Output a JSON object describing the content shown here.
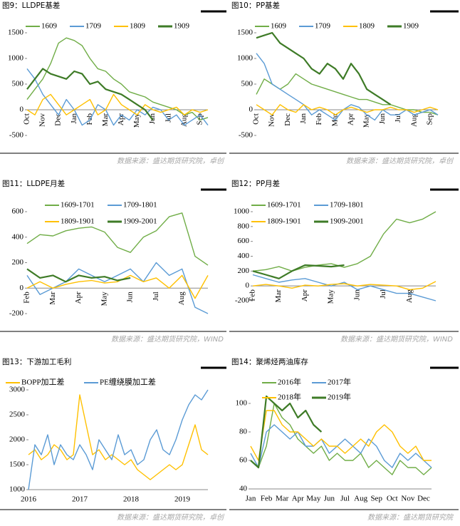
{
  "chart_data": [
    {
      "type": "line",
      "title": "图9：LLDPE基差",
      "source": "数据来源：盛达期货研究院，卓创",
      "categories": [
        "Oct",
        null,
        "Nov",
        null,
        "Dec",
        null,
        "Jan",
        null,
        "Feb",
        null,
        "Mar",
        null,
        "Apr",
        null,
        "May",
        null,
        "Jun",
        null,
        "Jul",
        null,
        "Aug",
        null,
        "Sep",
        null
      ],
      "ylim": [
        -500,
        1500
      ],
      "yticks": [
        -500,
        0,
        500,
        1000,
        1500
      ],
      "legend": "top",
      "series": [
        {
          "name": "1609",
          "color": "#70ad47",
          "values": [
            200,
            400,
            600,
            900,
            1300,
            1400,
            1350,
            1250,
            1000,
            800,
            750,
            600,
            500,
            350,
            300,
            250,
            150,
            100,
            50,
            0,
            -100,
            -50,
            -200,
            -150
          ]
        },
        {
          "name": "1709",
          "color": "#5b9bd5",
          "values": [
            800,
            600,
            300,
            100,
            -100,
            200,
            0,
            -300,
            -200,
            100,
            0,
            -300,
            -100,
            -200,
            0,
            -100,
            50,
            0,
            -200,
            -100,
            -300,
            -200,
            -100,
            -300
          ]
        },
        {
          "name": "1809",
          "color": "#ffc000",
          "values": [
            0,
            -100,
            200,
            300,
            100,
            -100,
            0,
            100,
            200,
            -100,
            0,
            300,
            100,
            0,
            -100,
            100,
            0,
            -50,
            0,
            50,
            -100,
            0,
            -50,
            0
          ]
        },
        {
          "name": "1909",
          "color": "#3e7b27",
          "values": [
            400,
            600,
            800,
            700,
            650,
            600,
            750,
            700,
            500,
            550,
            400,
            350,
            300,
            200,
            100,
            0,
            -200,
            null,
            null,
            null,
            null,
            null,
            null,
            null
          ]
        }
      ]
    },
    {
      "type": "line",
      "title": "图10：PP基差",
      "source": "数据来源：盛达期货研究院，卓创",
      "categories": [
        "Oct",
        null,
        "Nov",
        null,
        "Dec",
        null,
        "Jan",
        null,
        "Feb",
        null,
        "Mar",
        null,
        "Apr",
        null,
        "May",
        null,
        "Jun",
        null,
        "Jul",
        null,
        "Aug",
        null,
        "Sep",
        null
      ],
      "ylim": [
        -500,
        1500
      ],
      "yticks": [
        -500,
        0,
        500,
        1000,
        1500
      ],
      "legend": "top",
      "series": [
        {
          "name": "1609",
          "color": "#70ad47",
          "values": [
            300,
            600,
            500,
            400,
            500,
            700,
            600,
            500,
            450,
            400,
            350,
            300,
            250,
            200,
            200,
            150,
            100,
            100,
            50,
            0,
            0,
            -50,
            -50,
            -100
          ]
        },
        {
          "name": "1709",
          "color": "#5b9bd5",
          "values": [
            1100,
            900,
            500,
            400,
            300,
            200,
            100,
            -100,
            0,
            -100,
            -200,
            0,
            100,
            50,
            -100,
            -200,
            0,
            -100,
            -100,
            0,
            -100,
            -50,
            0,
            -100
          ]
        },
        {
          "name": "1809",
          "color": "#ffc000",
          "values": [
            100,
            0,
            -100,
            100,
            0,
            -50,
            100,
            0,
            50,
            0,
            -100,
            0,
            50,
            0,
            -50,
            0,
            0,
            50,
            0,
            0,
            -50,
            0,
            50,
            0
          ]
        },
        {
          "name": "1909",
          "color": "#3e7b27",
          "values": [
            1400,
            1450,
            1500,
            1300,
            1200,
            1100,
            1000,
            800,
            700,
            900,
            800,
            600,
            900,
            700,
            400,
            300,
            200,
            100,
            null,
            null,
            null,
            null,
            null,
            null
          ]
        }
      ]
    },
    {
      "type": "line",
      "title": "图11：LLDPE月差",
      "source": "数据来源：盛达期货研究院，WIND",
      "categories": [
        "Feb",
        null,
        "Mar",
        null,
        "Apr",
        null,
        "May",
        null,
        "Jun",
        null,
        "Jul",
        null,
        "Aug",
        null,
        null
      ],
      "ylim": [
        -200,
        600
      ],
      "yticks": [
        -200,
        0,
        200,
        400,
        600
      ],
      "legend": "top",
      "series": [
        {
          "name": "1609-1701",
          "color": "#70ad47",
          "values": [
            350,
            420,
            410,
            450,
            470,
            480,
            440,
            320,
            280,
            400,
            450,
            560,
            590,
            250,
            180
          ]
        },
        {
          "name": "1709-1801",
          "color": "#5b9bd5",
          "values": [
            100,
            -50,
            0,
            50,
            150,
            100,
            50,
            100,
            150,
            50,
            200,
            100,
            150,
            -150,
            -200
          ]
        },
        {
          "name": "1809-1901",
          "color": "#ffc000",
          "values": [
            0,
            50,
            0,
            30,
            50,
            60,
            40,
            50,
            100,
            50,
            80,
            0,
            100,
            -80,
            100
          ]
        },
        {
          "name": "1909-2001",
          "color": "#3e7b27",
          "values": [
            150,
            80,
            100,
            50,
            100,
            80,
            90,
            60,
            80,
            null,
            null,
            null,
            null,
            null,
            null
          ]
        }
      ]
    },
    {
      "type": "line",
      "title": "图12：PP月差",
      "source": "数据来源：盛达期货研究院，WIND",
      "categories": [
        "Feb",
        null,
        "Mar",
        null,
        "Apr",
        null,
        "May",
        null,
        "Jun",
        null,
        "Jul",
        null,
        "Aug",
        null,
        null
      ],
      "ylim": [
        -200,
        1000
      ],
      "yticks": [
        -200,
        0,
        200,
        400,
        600,
        800,
        1000
      ],
      "legend": "top",
      "series": [
        {
          "name": "1609-1701",
          "color": "#70ad47",
          "values": [
            200,
            220,
            260,
            200,
            250,
            280,
            300,
            250,
            300,
            400,
            700,
            900,
            850,
            900,
            1000
          ]
        },
        {
          "name": "1709-1801",
          "color": "#5b9bd5",
          "values": [
            150,
            100,
            50,
            80,
            100,
            50,
            0,
            50,
            -50,
            0,
            -50,
            -100,
            -100,
            -150,
            -200
          ]
        },
        {
          "name": "1809-1901",
          "color": "#ffc000",
          "values": [
            0,
            20,
            0,
            -30,
            10,
            0,
            20,
            30,
            0,
            20,
            10,
            0,
            -50,
            -30,
            60
          ]
        },
        {
          "name": "1909-2001",
          "color": "#3e7b27",
          "values": [
            200,
            150,
            100,
            200,
            280,
            270,
            260,
            280,
            null,
            null,
            null,
            null,
            null,
            null,
            null
          ]
        }
      ]
    },
    {
      "type": "line",
      "title": "图13：下游加工毛利",
      "source": "数据来源：盛达期货研究院，卓创",
      "categories": [
        "2016",
        null,
        null,
        null,
        null,
        null,
        null,
        null,
        "2017",
        null,
        null,
        null,
        null,
        null,
        null,
        null,
        "2018",
        null,
        null,
        null,
        null,
        null,
        null,
        null,
        "2019",
        null,
        null,
        null,
        null
      ],
      "ylim": [
        1000,
        3000
      ],
      "yticks": [
        1000,
        1500,
        2000,
        2500,
        3000
      ],
      "legend": "top",
      "series": [
        {
          "name": "BOPP加工差",
          "color": "#ffc000",
          "values": [
            1700,
            1800,
            1600,
            1700,
            1900,
            1800,
            1600,
            1700,
            2900,
            2300,
            1700,
            1800,
            1600,
            1700,
            1600,
            1500,
            1600,
            1400,
            1300,
            1200,
            1300,
            1400,
            1500,
            1400,
            1500,
            1900,
            2300,
            1800,
            1700
          ]
        },
        {
          "name": "PE缠绕膜加工差",
          "color": "#5b9bd5",
          "values": [
            1000,
            1900,
            1700,
            2100,
            1500,
            1900,
            1700,
            1600,
            1900,
            1700,
            1400,
            2000,
            1800,
            1600,
            2100,
            1700,
            1800,
            1500,
            1600,
            2000,
            2200,
            1800,
            1700,
            2000,
            2400,
            2700,
            2900,
            2800,
            3000
          ]
        }
      ]
    },
    {
      "type": "line",
      "title": "图14：聚烯烃两油库存",
      "source": "数据来源：盛达期货研究院",
      "categories": [
        "Jan",
        null,
        "Feb",
        null,
        "Mar",
        null,
        "Apr",
        null,
        "May",
        null,
        "Jun",
        null,
        "Jul",
        null,
        "Aug",
        null,
        "Sep",
        null,
        "Oct",
        null,
        "Nov",
        null,
        "Dec",
        null
      ],
      "ylim": [
        40,
        110
      ],
      "yticks": [
        40,
        60,
        80,
        100
      ],
      "legend": "top",
      "series": [
        {
          "name": "2016年",
          "color": "#70ad47",
          "values": [
            60,
            55,
            70,
            100,
            90,
            85,
            75,
            70,
            65,
            70,
            60,
            65,
            60,
            60,
            65,
            55,
            60,
            55,
            50,
            60,
            55,
            55,
            50,
            55
          ]
        },
        {
          "name": "2017年",
          "color": "#5b9bd5",
          "values": [
            65,
            55,
            80,
            85,
            80,
            75,
            80,
            70,
            70,
            75,
            65,
            70,
            75,
            70,
            65,
            75,
            70,
            60,
            55,
            65,
            60,
            65,
            60,
            55
          ]
        },
        {
          "name": "2018年",
          "color": "#ffc000",
          "values": [
            70,
            60,
            95,
            95,
            85,
            80,
            80,
            75,
            70,
            75,
            70,
            70,
            65,
            70,
            75,
            70,
            80,
            85,
            80,
            70,
            65,
            70,
            60,
            60
          ]
        },
        {
          "name": "2019年",
          "color": "#3e7b27",
          "values": [
            60,
            55,
            105,
            100,
            95,
            100,
            90,
            95,
            85,
            80,
            null,
            null,
            null,
            null,
            null,
            null,
            null,
            null,
            null,
            null,
            null,
            null,
            null,
            null
          ]
        }
      ]
    }
  ]
}
